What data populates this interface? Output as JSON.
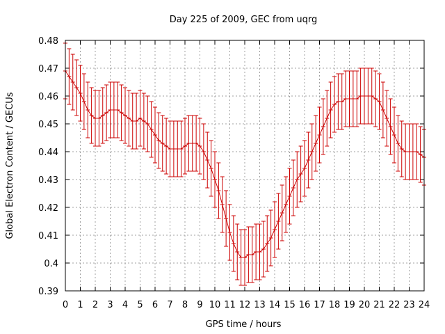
{
  "chart_data": {
    "type": "line",
    "title": "Day 225 of 2009, GEC from uqrg",
    "xlabel": "GPS time / hours",
    "ylabel": "Global Electron Content / GECUs",
    "xlim": [
      0,
      24
    ],
    "ylim": [
      0.39,
      0.48
    ],
    "xticks": [
      0,
      1,
      2,
      3,
      4,
      5,
      6,
      7,
      8,
      9,
      10,
      11,
      12,
      13,
      14,
      15,
      16,
      17,
      18,
      19,
      20,
      21,
      22,
      23,
      24
    ],
    "yticks": [
      0.39,
      0.4,
      0.41,
      0.42,
      0.43,
      0.44,
      0.45,
      0.46,
      0.47,
      0.48
    ],
    "ytick_labels": [
      "0.39",
      "0.4",
      "0.41",
      "0.42",
      "0.43",
      "0.44",
      "0.45",
      "0.46",
      "0.47",
      "0.48"
    ],
    "grid": true,
    "colors": {
      "series": "#cc0000",
      "grid": "#a0a0a0",
      "axis": "#000000"
    },
    "series": [
      {
        "name": "GEC",
        "error": 0.01,
        "x": [
          0,
          0.25,
          0.5,
          0.75,
          1,
          1.25,
          1.5,
          1.75,
          2,
          2.25,
          2.5,
          2.75,
          3,
          3.25,
          3.5,
          3.75,
          4,
          4.25,
          4.5,
          4.75,
          5,
          5.25,
          5.5,
          5.75,
          6,
          6.25,
          6.5,
          6.75,
          7,
          7.25,
          7.5,
          7.75,
          8,
          8.25,
          8.5,
          8.75,
          9,
          9.25,
          9.5,
          9.75,
          10,
          10.25,
          10.5,
          10.75,
          11,
          11.25,
          11.5,
          11.75,
          12,
          12.25,
          12.5,
          12.75,
          13,
          13.25,
          13.5,
          13.75,
          14,
          14.25,
          14.5,
          14.75,
          15,
          15.25,
          15.5,
          15.75,
          16,
          16.25,
          16.5,
          16.75,
          17,
          17.25,
          17.5,
          17.75,
          18,
          18.25,
          18.5,
          18.75,
          19,
          19.25,
          19.5,
          19.75,
          20,
          20.25,
          20.5,
          20.75,
          21,
          21.25,
          21.5,
          21.75,
          22,
          22.25,
          22.5,
          22.75,
          23,
          23.25,
          23.5,
          23.75,
          24
        ],
        "y": [
          0.469,
          0.467,
          0.465,
          0.463,
          0.461,
          0.458,
          0.455,
          0.453,
          0.452,
          0.452,
          0.453,
          0.454,
          0.455,
          0.455,
          0.455,
          0.454,
          0.453,
          0.452,
          0.451,
          0.451,
          0.452,
          0.451,
          0.45,
          0.448,
          0.446,
          0.444,
          0.443,
          0.442,
          0.441,
          0.441,
          0.441,
          0.441,
          0.442,
          0.443,
          0.443,
          0.443,
          0.442,
          0.44,
          0.437,
          0.434,
          0.43,
          0.426,
          0.421,
          0.416,
          0.411,
          0.407,
          0.404,
          0.402,
          0.402,
          0.403,
          0.403,
          0.404,
          0.404,
          0.405,
          0.407,
          0.409,
          0.412,
          0.415,
          0.418,
          0.421,
          0.424,
          0.427,
          0.43,
          0.432,
          0.434,
          0.437,
          0.44,
          0.443,
          0.446,
          0.449,
          0.452,
          0.455,
          0.457,
          0.458,
          0.458,
          0.459,
          0.459,
          0.459,
          0.459,
          0.46,
          0.46,
          0.46,
          0.46,
          0.459,
          0.458,
          0.455,
          0.452,
          0.449,
          0.446,
          0.443,
          0.441,
          0.44,
          0.44,
          0.44,
          0.44,
          0.439,
          0.438
        ]
      }
    ]
  }
}
